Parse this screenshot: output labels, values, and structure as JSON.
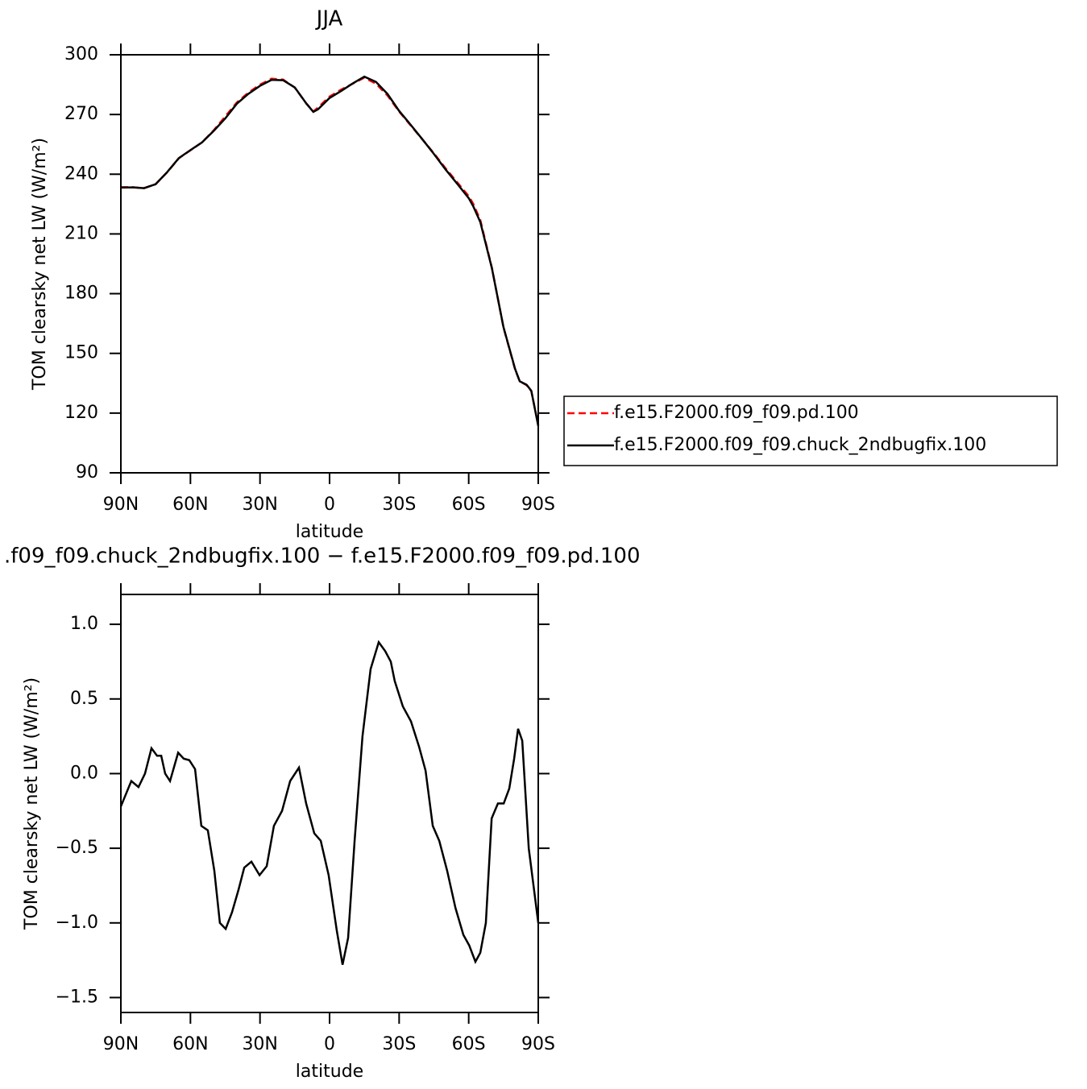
{
  "chart_data": [
    {
      "type": "line",
      "title": "JJA",
      "xlabel": "latitude",
      "ylabel": "TOM clearsky net LW (W/m²)",
      "x": [
        90,
        85,
        80,
        75,
        70,
        65,
        60,
        55,
        50,
        45,
        40,
        35,
        30,
        25,
        20,
        15,
        10,
        7,
        5,
        0,
        -5,
        -10,
        -15,
        -20,
        -25,
        -30,
        -35,
        -40,
        -45,
        -50,
        -55,
        -60,
        -62,
        -65,
        -70,
        -75,
        -80,
        -82,
        -85,
        -87,
        -90
      ],
      "series": [
        {
          "name": "f.e15.F2000.f09_f09.pd.100",
          "color": "#ff0000",
          "linestyle": "dashed",
          "values": [
            233.5,
            233.5,
            233,
            235,
            241,
            248,
            252,
            256,
            262,
            269,
            276,
            281,
            285,
            288,
            287.5,
            283.5,
            275.5,
            271.5,
            273.5,
            279,
            282.5,
            285.5,
            288.5,
            285.5,
            279.5,
            271.5,
            264.5,
            257.5,
            250.5,
            243,
            236,
            229,
            225,
            217,
            193,
            163,
            142,
            136,
            134,
            131,
            114
          ]
        },
        {
          "name": "f.e15.F2000.f09_f09.chuck_2ndbugfix.100",
          "color": "#000000",
          "linestyle": "solid",
          "values": [
            233.3,
            233.4,
            233,
            235,
            241.1,
            248.1,
            252.1,
            256,
            261.7,
            268,
            275.4,
            280.4,
            284.4,
            287.4,
            287.2,
            283.6,
            275.5,
            271.3,
            272.6,
            278.3,
            281.8,
            285.6,
            289,
            286.4,
            280.3,
            271.8,
            264.8,
            257.6,
            250.2,
            242.4,
            235.3,
            228,
            223.8,
            216,
            192.8,
            163.2,
            142.2,
            136,
            134.2,
            131.2,
            113.5
          ]
        }
      ],
      "xlim": [
        90,
        -90
      ],
      "xticks": [
        {
          "value": 90,
          "label": "90N"
        },
        {
          "value": 60,
          "label": "60N"
        },
        {
          "value": 30,
          "label": "30N"
        },
        0,
        {
          "value": -30,
          "label": "30S"
        },
        {
          "value": -60,
          "label": "60S"
        },
        {
          "value": -90,
          "label": "90S"
        }
      ],
      "ylim": [
        90,
        300
      ],
      "yticks": [
        90,
        120,
        150,
        180,
        210,
        240,
        270,
        300
      ],
      "legend": "outside-right"
    },
    {
      "type": "line",
      "title": ".f09_f09.chuck_2ndbugfix.100 − f.e15.F2000.f09_f09.pd.100",
      "xlabel": "latitude",
      "ylabel": "TOM clearsky net LW (W/m²)",
      "x": [
        90,
        85.5,
        82.4,
        79.6,
        76.8,
        74.4,
        72.6,
        70.9,
        68.8,
        65.3,
        62.9,
        60.5,
        58,
        55.3,
        52.5,
        49.7,
        47.3,
        44.8,
        42.1,
        39.3,
        36.8,
        33.7,
        30.2,
        27.1,
        24,
        20.5,
        17,
        13.2,
        10.1,
        6.6,
        3.8,
        0.4,
        -3.1,
        -5.6,
        -8,
        -10.8,
        -14.2,
        -17.7,
        -21.2,
        -24,
        -26.4,
        -28.1,
        -31.6,
        -35.1,
        -38.6,
        -41.4,
        -44.5,
        -47.3,
        -50.7,
        -54.3,
        -57.7,
        -60.2,
        -62.9,
        -65,
        -67.4,
        -69.9,
        -72.6,
        -75.1,
        -77.5,
        -79.6,
        -81.3,
        -83.1,
        -85.9,
        -90
      ],
      "series": [
        {
          "color": "#000000",
          "linestyle": "solid",
          "values": [
            -0.22,
            -0.05,
            -0.09,
            0.0,
            0.17,
            0.12,
            0.12,
            0.0,
            -0.05,
            0.14,
            0.1,
            0.09,
            0.03,
            -0.35,
            -0.38,
            -0.65,
            -1.0,
            -1.04,
            -0.93,
            -0.78,
            -0.63,
            -0.59,
            -0.68,
            -0.62,
            -0.35,
            -0.25,
            -0.05,
            0.04,
            -0.2,
            -0.4,
            -0.45,
            -0.68,
            -1.05,
            -1.28,
            -1.1,
            -0.45,
            0.25,
            0.7,
            0.88,
            0.82,
            0.75,
            0.62,
            0.45,
            0.35,
            0.18,
            0.02,
            -0.35,
            -0.45,
            -0.65,
            -0.9,
            -1.08,
            -1.15,
            -1.26,
            -1.2,
            -1.0,
            -0.3,
            -0.2,
            -0.2,
            -0.1,
            0.1,
            0.3,
            0.22,
            -0.5,
            -1.0
          ]
        }
      ],
      "xlim": [
        90,
        -90
      ],
      "xticks": [
        {
          "value": 90,
          "label": "90N"
        },
        {
          "value": 60,
          "label": "60N"
        },
        {
          "value": 30,
          "label": "30N"
        },
        0,
        {
          "value": -30,
          "label": "30S"
        },
        {
          "value": -60,
          "label": "60S"
        },
        {
          "value": -90,
          "label": "90S"
        }
      ],
      "ylim": [
        -1.6,
        1.2
      ],
      "yticks": [
        {
          "value": -1.5,
          "label": "−1.5"
        },
        {
          "value": -1.0,
          "label": "−1.0"
        },
        {
          "value": -0.5,
          "label": "−0.5"
        },
        {
          "value": 0,
          "label": "0.0"
        },
        0.5,
        {
          "value": 1,
          "label": "1.0"
        }
      ]
    }
  ]
}
